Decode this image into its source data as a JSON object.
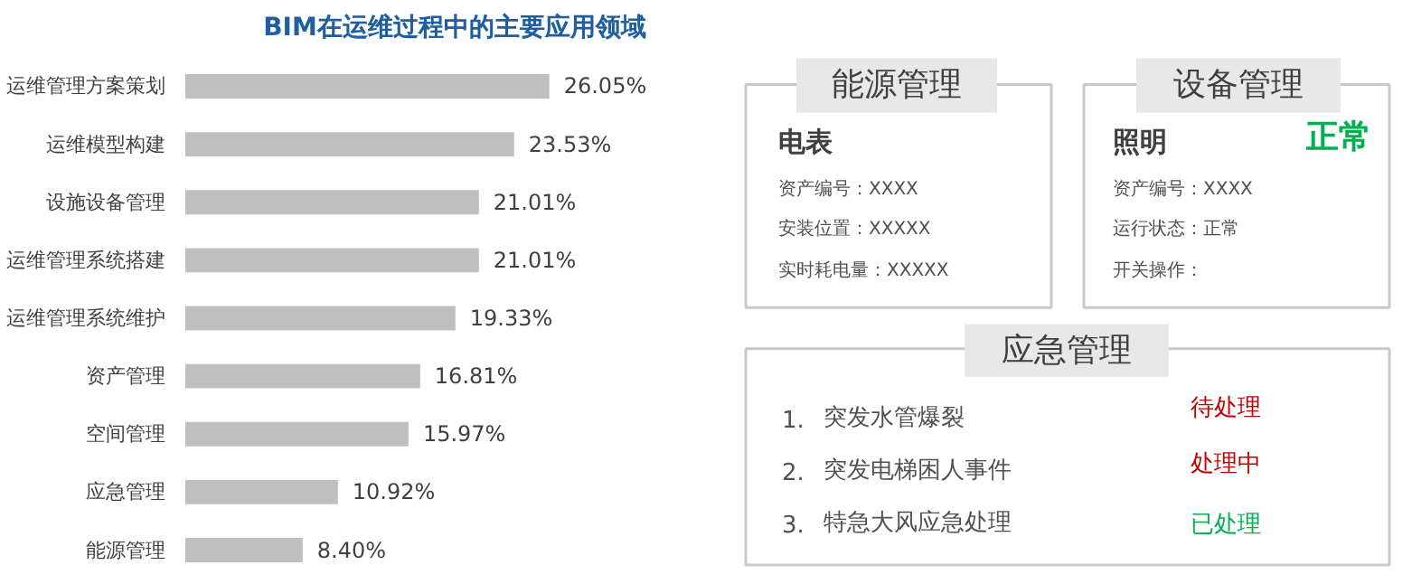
{
  "chart_data": [
    {
      "type": "bar",
      "orientation": "horizontal",
      "title": "BIM在运维过程中的主要应用领域",
      "categories": [
        "运维管理方案策划",
        "运维模型构建",
        "设施设备管理",
        "运维管理系统搭建",
        "运维管理系统维护",
        "资产管理",
        "空间管理",
        "应急管理",
        "能源管理"
      ],
      "values": [
        26.05,
        23.53,
        21.01,
        21.01,
        19.33,
        16.81,
        15.97,
        10.92,
        8.4
      ],
      "value_labels": [
        "26.05%",
        "23.53%",
        "21.01%",
        "21.01%",
        "19.33%",
        "16.81%",
        "15.97%",
        "10.92%",
        "8.40%"
      ],
      "color": "#bfbfbf",
      "grid": false
    },
    {
      "type": "other",
      "title": "能源管理",
      "subtitle": "电表",
      "annotations": [
        "资产编号：XXXX",
        "安装位置：XXXXX",
        "实时耗电量：XXXXX"
      ]
    },
    {
      "type": "other",
      "title": "设备管理",
      "subtitle": "照明",
      "annotations": [
        "正常",
        "资产编号：XXXX",
        "运行状态：正常",
        "开关操作："
      ],
      "colors": [
        "#00b050",
        null,
        null,
        null
      ]
    },
    {
      "type": "other",
      "title": "应急管理",
      "annotations": [
        "1.",
        "突发水管爆裂",
        "待处理",
        "2.",
        "突发电梯困人事件",
        "处理中",
        "3.",
        "特急大风应急处理",
        "已处理"
      ],
      "colors": [
        null,
        null,
        "#c00000",
        null,
        null,
        "#c00000",
        null,
        null,
        "#00b050"
      ]
    }
  ]
}
